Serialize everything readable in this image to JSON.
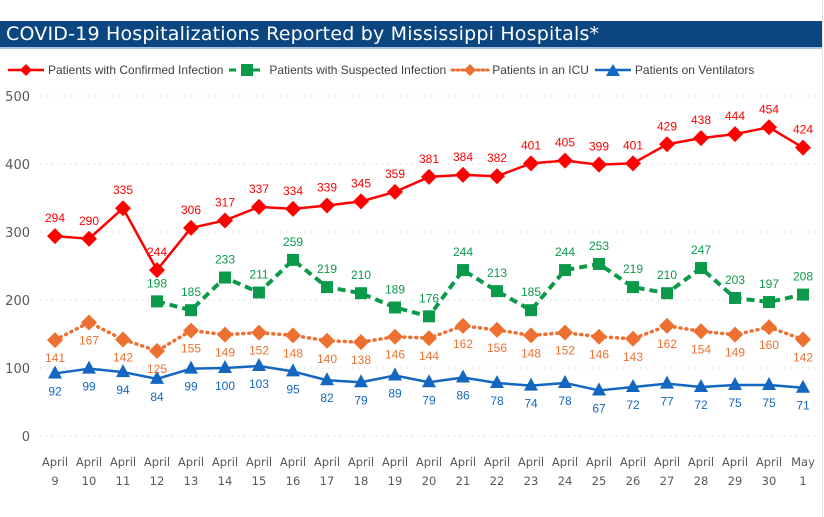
{
  "title": "COVID-19 Hospitalizations Reported by Mississippi Hospitals*",
  "chart_data": {
    "type": "line",
    "title": "COVID-19 Hospitalizations Reported by Mississippi Hospitals*",
    "xlabel": "",
    "ylabel": "",
    "ylim": [
      0,
      500
    ],
    "yticks": [
      0,
      100,
      200,
      300,
      400,
      500
    ],
    "grid": true,
    "legend_position": "top",
    "categories": [
      [
        "April",
        "9"
      ],
      [
        "April",
        "10"
      ],
      [
        "April",
        "11"
      ],
      [
        "April",
        "12"
      ],
      [
        "April",
        "13"
      ],
      [
        "April",
        "14"
      ],
      [
        "April",
        "15"
      ],
      [
        "April",
        "16"
      ],
      [
        "April",
        "17"
      ],
      [
        "April",
        "18"
      ],
      [
        "April",
        "19"
      ],
      [
        "April",
        "20"
      ],
      [
        "April",
        "21"
      ],
      [
        "April",
        "22"
      ],
      [
        "April",
        "23"
      ],
      [
        "April",
        "24"
      ],
      [
        "April",
        "25"
      ],
      [
        "April",
        "26"
      ],
      [
        "April",
        "27"
      ],
      [
        "April",
        "28"
      ],
      [
        "April",
        "29"
      ],
      [
        "April",
        "30"
      ],
      [
        "May",
        "1"
      ]
    ],
    "series": [
      {
        "name": "Patients with Confirmed Infection",
        "color": "#ff0000",
        "marker": "diamond",
        "line": "solid",
        "label_position": "above",
        "values": [
          294,
          290,
          335,
          244,
          306,
          317,
          337,
          334,
          339,
          345,
          359,
          381,
          384,
          382,
          401,
          405,
          399,
          401,
          429,
          438,
          444,
          454,
          424
        ]
      },
      {
        "name": "Patients with Suspected Infection",
        "color": "#0a9a4a",
        "marker": "square",
        "line": "dashed",
        "label_position": "above",
        "values": [
          null,
          null,
          null,
          198,
          185,
          233,
          211,
          259,
          219,
          210,
          189,
          176,
          244,
          213,
          185,
          244,
          253,
          219,
          210,
          247,
          203,
          197,
          208
        ]
      },
      {
        "name": "Patients in an ICU",
        "color": "#ed7031",
        "marker": "diamond",
        "line": "dotted",
        "label_position": "below",
        "values": [
          141,
          167,
          142,
          125,
          155,
          149,
          152,
          148,
          140,
          138,
          146,
          144,
          162,
          156,
          148,
          152,
          146,
          143,
          162,
          154,
          149,
          160,
          142
        ]
      },
      {
        "name": "Patients on Ventilators",
        "color": "#1367c0",
        "marker": "triangle",
        "line": "solid",
        "label_position": "below",
        "values": [
          92,
          99,
          94,
          84,
          99,
          100,
          103,
          95,
          82,
          79,
          89,
          79,
          86,
          78,
          74,
          78,
          67,
          72,
          77,
          72,
          75,
          75,
          71
        ]
      }
    ]
  }
}
